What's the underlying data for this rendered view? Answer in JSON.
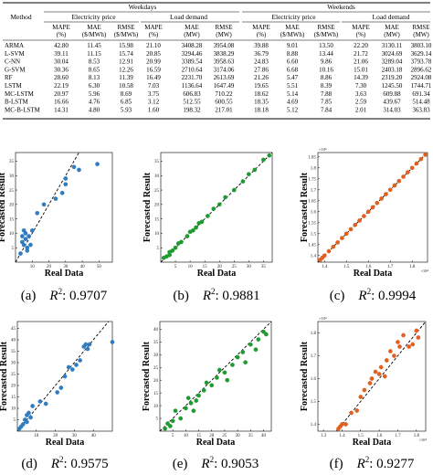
{
  "table": {
    "group_headers": [
      "Weekdays",
      "Weekends"
    ],
    "sub_headers": [
      "Electricity price",
      "Load demand",
      "Electricity price",
      "Load demand"
    ],
    "method_header": "Method",
    "col_headers": [
      [
        "MAPE",
        "(%)"
      ],
      [
        "MAE",
        "($/MWh)"
      ],
      [
        "RMSE",
        "($/MWh)"
      ],
      [
        "MAPE",
        "(%)"
      ],
      [
        "MAE",
        "(MW)"
      ],
      [
        "RMSE",
        "(MW)"
      ],
      [
        "MAPE",
        "(%)"
      ],
      [
        "MAE",
        "($/MWh)"
      ],
      [
        "RMSE",
        "($/MWh)"
      ],
      [
        "MAPE",
        "(%)"
      ],
      [
        "MAE",
        "(MW)"
      ],
      [
        "RMSE",
        "(MW)"
      ]
    ],
    "rows": [
      {
        "method": "ARMA",
        "values": [
          "42.80",
          "11.45",
          "15.98",
          "21.10",
          "3408.28",
          "3954.08",
          "39.88",
          "9.01",
          "13.50",
          "22.20",
          "3130.11",
          "3803.10"
        ]
      },
      {
        "method": "L-SVM",
        "values": [
          "39.11",
          "11.15",
          "15.74",
          "20.85",
          "3294.46",
          "3838.29",
          "36.79",
          "8.88",
          "13.44",
          "21.72",
          "3024.69",
          "3629.14"
        ]
      },
      {
        "method": "C-NN",
        "values": [
          "30.04",
          "8.53",
          "12.91",
          "20.99",
          "3389.54",
          "3958.63",
          "24.83",
          "6.60",
          "9.86",
          "21.06",
          "3289.04",
          "3793.78"
        ]
      },
      {
        "method": "G-SVM",
        "values": [
          "30.36",
          "8.65",
          "12.26",
          "16.59",
          "2710.64",
          "3174.06",
          "27.86",
          "6.68",
          "10.16",
          "15.01",
          "2403.18",
          "2896.62"
        ]
      },
      {
        "method": "RF",
        "values": [
          "28.60",
          "8.13",
          "11.39",
          "16.49",
          "2231.70",
          "2613.69",
          "21.26",
          "5.47",
          "8.86",
          "14.39",
          "2319.20",
          "2924.08"
        ]
      },
      {
        "method": "LSTM",
        "values": [
          "22.19",
          "6.30",
          "10.58",
          "7.03",
          "1136.64",
          "1647.49",
          "19.65",
          "5.51",
          "8.39",
          "7.30",
          "1245.50",
          "1744.71"
        ]
      },
      {
        "method": "MC-LSTM",
        "values": [
          "20.97",
          "5.96",
          "8.69",
          "3.75",
          "606.83",
          "710.22",
          "18.62",
          "5.14",
          "7.88",
          "3.63",
          "609.88",
          "691.34"
        ]
      },
      {
        "method": "B-LSTM",
        "values": [
          "16.66",
          "4.76",
          "6.85",
          "3.12",
          "512.55",
          "600.55",
          "18.35",
          "4.69",
          "7.85",
          "2.59",
          "439.67",
          "514.48"
        ]
      },
      {
        "method": "MC-B-LSTM",
        "values": [
          "14.31",
          "4.80",
          "5.93",
          "1.60",
          "198.32",
          "217.01",
          "18.18",
          "5.12",
          "7.84",
          "2.01",
          "314.03",
          "363.83"
        ]
      }
    ]
  },
  "axis_xlabel": "Real Data",
  "axis_ylabel": "Forecasted Result",
  "chart_data": [
    {
      "type": "scatter",
      "caption_letter": "(a)",
      "r2": "0.9707",
      "color": "#2f7cc0",
      "x_ticks": [
        "10",
        "20",
        "30",
        "40",
        "50"
      ],
      "y_ticks": [
        "5",
        "10",
        "15",
        "20",
        "25",
        "30",
        "35"
      ],
      "xlim": [
        0,
        58
      ],
      "ylim": [
        0,
        38
      ],
      "mult": "",
      "points": [
        [
          3,
          3
        ],
        [
          4,
          7
        ],
        [
          4,
          9
        ],
        [
          5,
          11
        ],
        [
          5,
          6
        ],
        [
          6,
          8
        ],
        [
          6,
          10
        ],
        [
          7,
          4
        ],
        [
          7,
          5
        ],
        [
          8,
          9
        ],
        [
          9,
          6
        ],
        [
          10,
          11
        ],
        [
          13,
          17
        ],
        [
          17,
          20
        ],
        [
          24,
          22
        ],
        [
          28,
          24
        ],
        [
          30,
          27
        ],
        [
          30,
          29
        ],
        [
          35,
          33
        ],
        [
          38,
          32
        ],
        [
          49,
          34
        ]
      ]
    },
    {
      "type": "scatter",
      "caption_letter": "(b)",
      "r2": "0.9881",
      "color": "#1f9a30",
      "x_ticks": [
        "5",
        "10",
        "15",
        "20",
        "25",
        "30",
        "35"
      ],
      "y_ticks": [
        "5",
        "10",
        "15",
        "20",
        "25",
        "30",
        "35"
      ],
      "xlim": [
        0,
        38
      ],
      "ylim": [
        0,
        38
      ],
      "mult": "",
      "points": [
        [
          1,
          1.5
        ],
        [
          2,
          2
        ],
        [
          3,
          3.5
        ],
        [
          3,
          2.5
        ],
        [
          4,
          4
        ],
        [
          5,
          5
        ],
        [
          6,
          6.5
        ],
        [
          7,
          7
        ],
        [
          9,
          9
        ],
        [
          10,
          10.5
        ],
        [
          11,
          11
        ],
        [
          12,
          12
        ],
        [
          13,
          13.5
        ],
        [
          14,
          14
        ],
        [
          16,
          16
        ],
        [
          18,
          18.5
        ],
        [
          20,
          20
        ],
        [
          22,
          22.5
        ],
        [
          25,
          25
        ],
        [
          28,
          28
        ],
        [
          30,
          30.5
        ],
        [
          32,
          32
        ],
        [
          35,
          35.5
        ],
        [
          37,
          37
        ]
      ]
    },
    {
      "type": "scatter",
      "caption_letter": "(c)",
      "r2": "0.9994",
      "color": "#e06020",
      "x_ticks": [
        "1.4",
        "1.5",
        "1.6",
        "1.7",
        "1.8"
      ],
      "y_ticks": [
        "1.4",
        "1.45",
        "1.5",
        "1.55",
        "1.6",
        "1.65",
        "1.7",
        "1.75",
        "1.8",
        "1.85"
      ],
      "xlim": [
        1.37,
        1.87
      ],
      "ylim": [
        1.37,
        1.87
      ],
      "mult": "×10⁴",
      "points": [
        [
          1.38,
          1.38
        ],
        [
          1.39,
          1.39
        ],
        [
          1.4,
          1.4
        ],
        [
          1.42,
          1.42
        ],
        [
          1.44,
          1.44
        ],
        [
          1.46,
          1.46
        ],
        [
          1.48,
          1.48
        ],
        [
          1.5,
          1.5
        ],
        [
          1.52,
          1.52
        ],
        [
          1.54,
          1.54
        ],
        [
          1.56,
          1.56
        ],
        [
          1.58,
          1.58
        ],
        [
          1.6,
          1.6
        ],
        [
          1.62,
          1.62
        ],
        [
          1.64,
          1.64
        ],
        [
          1.66,
          1.66
        ],
        [
          1.68,
          1.68
        ],
        [
          1.7,
          1.7
        ],
        [
          1.72,
          1.72
        ],
        [
          1.74,
          1.74
        ],
        [
          1.76,
          1.76
        ],
        [
          1.78,
          1.78
        ],
        [
          1.8,
          1.8
        ],
        [
          1.82,
          1.82
        ],
        [
          1.84,
          1.84
        ],
        [
          1.86,
          1.86
        ]
      ]
    },
    {
      "type": "scatter",
      "caption_letter": "(d)",
      "r2": "0.9575",
      "color": "#2f7cc0",
      "x_ticks": [
        "10",
        "20",
        "30",
        "40"
      ],
      "y_ticks": [
        "5",
        "10",
        "15",
        "20",
        "25",
        "30",
        "35",
        "40",
        "45"
      ],
      "xlim": [
        0,
        50
      ],
      "ylim": [
        0,
        48
      ],
      "mult": "",
      "points": [
        [
          1,
          1
        ],
        [
          2,
          2
        ],
        [
          3,
          3
        ],
        [
          4,
          5
        ],
        [
          5,
          4
        ],
        [
          5,
          7
        ],
        [
          6,
          8
        ],
        [
          7,
          6
        ],
        [
          8,
          11
        ],
        [
          12,
          13
        ],
        [
          15,
          12
        ],
        [
          21,
          17
        ],
        [
          23,
          19
        ],
        [
          25,
          24
        ],
        [
          27,
          28
        ],
        [
          29,
          27
        ],
        [
          31,
          29
        ],
        [
          33,
          31
        ],
        [
          35,
          37
        ],
        [
          36,
          38
        ],
        [
          37,
          36
        ],
        [
          38,
          38
        ],
        [
          50,
          39
        ]
      ]
    },
    {
      "type": "scatter",
      "caption_letter": "(e)",
      "r2": "0.9053",
      "color": "#1f9a30",
      "x_ticks": [
        "5",
        "10",
        "15",
        "20",
        "25",
        "30",
        "35",
        "40"
      ],
      "y_ticks": [
        "5",
        "10",
        "15",
        "20",
        "25",
        "30",
        "35",
        "40"
      ],
      "xlim": [
        0,
        43
      ],
      "ylim": [
        0,
        43
      ],
      "mult": "",
      "points": [
        [
          2,
          1
        ],
        [
          3,
          3
        ],
        [
          4,
          2
        ],
        [
          5,
          4
        ],
        [
          6,
          8
        ],
        [
          8,
          5
        ],
        [
          10,
          9
        ],
        [
          11,
          13
        ],
        [
          12,
          11
        ],
        [
          13,
          8
        ],
        [
          14,
          12
        ],
        [
          15,
          14
        ],
        [
          17,
          16
        ],
        [
          18,
          19
        ],
        [
          20,
          18
        ],
        [
          22,
          21
        ],
        [
          23,
          24
        ],
        [
          25,
          23
        ],
        [
          26,
          20
        ],
        [
          28,
          26
        ],
        [
          30,
          29
        ],
        [
          32,
          31
        ],
        [
          33,
          27
        ],
        [
          35,
          34
        ],
        [
          37,
          32
        ],
        [
          38,
          36
        ],
        [
          40,
          39
        ],
        [
          41,
          38
        ]
      ]
    },
    {
      "type": "scatter",
      "caption_letter": "(f)",
      "r2": "0.9277",
      "color": "#e06020",
      "x_ticks": [
        "1.3",
        "1.4",
        "1.5",
        "1.6",
        "1.7",
        "1.8"
      ],
      "y_ticks": [
        "1.4",
        "1.5",
        "1.6",
        "1.7",
        "1.8"
      ],
      "xlim": [
        1.27,
        1.85
      ],
      "ylim": [
        1.37,
        1.85
      ],
      "mult": "×10⁴",
      "points": [
        [
          1.38,
          1.38
        ],
        [
          1.39,
          1.39
        ],
        [
          1.4,
          1.4
        ],
        [
          1.42,
          1.4
        ],
        [
          1.45,
          1.45
        ],
        [
          1.48,
          1.46
        ],
        [
          1.5,
          1.52
        ],
        [
          1.52,
          1.55
        ],
        [
          1.55,
          1.58
        ],
        [
          1.56,
          1.6
        ],
        [
          1.58,
          1.63
        ],
        [
          1.6,
          1.62
        ],
        [
          1.61,
          1.65
        ],
        [
          1.63,
          1.61
        ],
        [
          1.64,
          1.68
        ],
        [
          1.66,
          1.72
        ],
        [
          1.68,
          1.7
        ],
        [
          1.7,
          1.76
        ],
        [
          1.71,
          1.74
        ],
        [
          1.73,
          1.79
        ],
        [
          1.76,
          1.74
        ],
        [
          1.78,
          1.75
        ],
        [
          1.8,
          1.81
        ],
        [
          1.81,
          1.78
        ]
      ]
    }
  ]
}
